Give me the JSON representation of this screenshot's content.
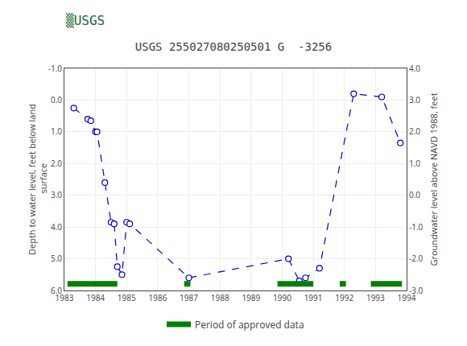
{
  "chart_data": {
    "type": "line",
    "title": "USGS 255027080250501 G  -3256",
    "annotations": [
      {
        "text": "▒USGS"
      }
    ],
    "ylabel": "Depth to water level, feet below land\n surface",
    "y2label": "Groundwater level above NAVD 1988, feet",
    "x": [
      1983.3,
      1983.75,
      1983.85,
      1984.0,
      1984.05,
      1984.3,
      1984.5,
      1984.6,
      1984.7,
      1984.85,
      1985.0,
      1985.1,
      1987.0,
      1990.2,
      1990.55,
      1990.75,
      1991.2,
      1992.3,
      1993.2,
      1993.8
    ],
    "series": [
      {
        "values": [
          0.25,
          0.6,
          0.65,
          1.0,
          1.0,
          2.6,
          3.85,
          3.9,
          5.25,
          5.5,
          3.85,
          3.9,
          5.6,
          5.0,
          5.7,
          5.6,
          5.3,
          -0.2,
          -0.1,
          1.35
        ],
        "color": "#0000CC",
        "line_style": "dashed",
        "marker": "open circle"
      },
      {
        "name": "Period of approved data",
        "type": "span",
        "color": "#008000",
        "periods": [
          [
            1983.1,
            1984.7
          ],
          [
            1986.85,
            1987.05
          ],
          [
            1989.85,
            1991.0
          ],
          [
            1991.85,
            1992.05
          ],
          [
            1992.85,
            1993.85
          ]
        ]
      }
    ],
    "xlim": [
      1983,
      1994
    ],
    "xticks": [
      1983,
      1984,
      1985,
      1986,
      1987,
      1988,
      1989,
      1990,
      1991,
      1992,
      1993,
      1994
    ],
    "ylim": [
      6.0,
      -1.0
    ],
    "yticks": [
      {
        "value": -1.0,
        "label": "-1.0"
      },
      {
        "value": 0.0,
        "label": "0.0"
      },
      {
        "value": 1.0,
        "label": "1.0"
      },
      {
        "value": 2.0,
        "label": "2.0"
      },
      {
        "value": 3.0,
        "label": "3.0"
      },
      {
        "value": 4.0,
        "label": "4.0"
      },
      {
        "value": 5.0,
        "label": "5.0"
      },
      {
        "value": 6.0,
        "label": "6.0"
      }
    ],
    "y2lim": [
      -3.0,
      4.0
    ],
    "y2ticks": [
      {
        "value": 4.0,
        "label": "4.0"
      },
      {
        "value": 3.0,
        "label": "3.0"
      },
      {
        "value": 2.0,
        "label": "2.0"
      },
      {
        "value": 1.0,
        "label": "1.0"
      },
      {
        "value": 0.0,
        "label": "0.0"
      },
      {
        "value": -1.0,
        "label": "-1.0"
      },
      {
        "value": -2.0,
        "label": "-2.0"
      },
      {
        "value": -3.0,
        "label": "-3.0"
      }
    ],
    "grid": true,
    "legend": "bottom"
  }
}
